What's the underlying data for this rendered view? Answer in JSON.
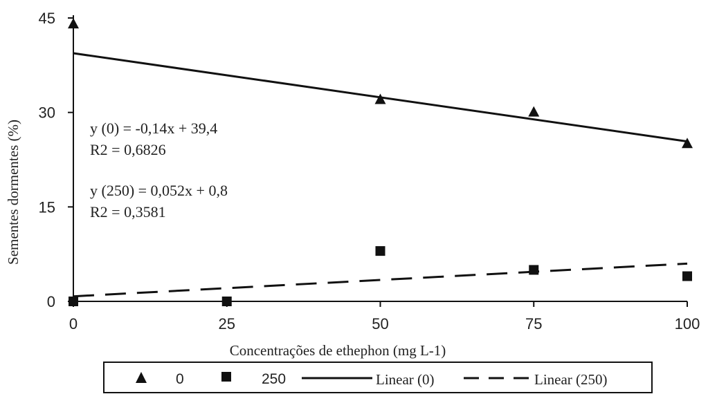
{
  "chart_data": {
    "type": "scatter",
    "title": "",
    "xlabel": "Concentrações de ethephon (mg L-1)",
    "ylabel": "Sementes dormentes (%)",
    "xlim": [
      0,
      100
    ],
    "ylim": [
      0,
      45
    ],
    "x_ticks": [
      0,
      25,
      50,
      75,
      100
    ],
    "y_ticks": [
      0,
      15,
      30,
      45
    ],
    "grid": false,
    "series": [
      {
        "name": "0",
        "marker": "triangle",
        "color": "#111111",
        "points": [
          {
            "x": 0,
            "y": 44
          },
          {
            "x": 50,
            "y": 32
          },
          {
            "x": 75,
            "y": 30
          },
          {
            "x": 100,
            "y": 25
          }
        ]
      },
      {
        "name": "250",
        "marker": "square",
        "color": "#111111",
        "points": [
          {
            "x": 0,
            "y": 0
          },
          {
            "x": 25,
            "y": 0
          },
          {
            "x": 50,
            "y": 8
          },
          {
            "x": 75,
            "y": 5
          },
          {
            "x": 100,
            "y": 4
          }
        ]
      }
    ],
    "trendlines": [
      {
        "name": "Linear (0)",
        "style": "solid",
        "slope": -0.14,
        "intercept": 39.4,
        "x_range": [
          0,
          100
        ]
      },
      {
        "name": "Linear (250)",
        "style": "dashed",
        "slope": 0.052,
        "intercept": 0.8,
        "x_range": [
          0,
          100
        ]
      }
    ],
    "annotations": [
      "y (0) = -0,14x + 39,4",
      "R2 = 0,6826",
      "y (250) = 0,052x + 0,8",
      "R2 = 0,3581"
    ],
    "legend": {
      "placement": "bottom",
      "entries": [
        "0",
        "250",
        "Linear (0)",
        "Linear (250)"
      ]
    }
  }
}
